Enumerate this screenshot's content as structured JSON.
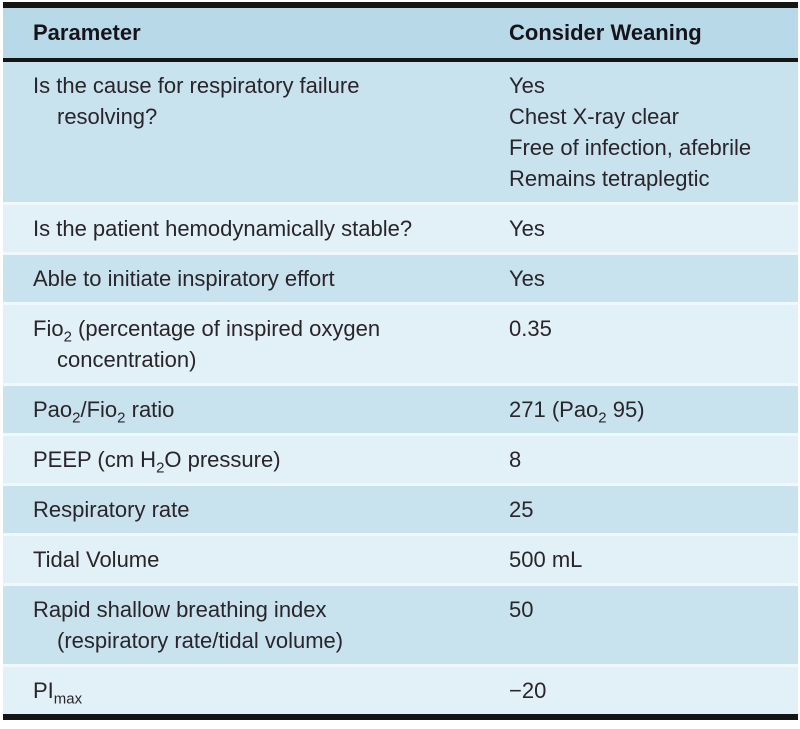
{
  "table": {
    "header": {
      "col1": "Parameter",
      "col2": "Consider Weaning"
    },
    "colors": {
      "header_bg": "#b7d9e8",
      "row_dark": "#c8e2ee",
      "row_light": "#e2f0f7",
      "separator": "#eff8fc",
      "border_black": "#151515",
      "text": "#29252a",
      "page_bg": "#ffffff"
    },
    "rows": [
      {
        "shade": "dark",
        "param_lines": [
          "Is the cause for respiratory failure",
          "resolving?"
        ],
        "values": [
          "Yes",
          "Chest X-ray clear",
          "Free of infection, afebrile",
          "Remains tetraplegtic"
        ]
      },
      {
        "shade": "light",
        "param_lines": [
          "Is the patient hemodynamically stable?"
        ],
        "values": [
          "Yes"
        ]
      },
      {
        "shade": "dark",
        "param_lines": [
          "Able to initiate inspiratory effort"
        ],
        "values": [
          "Yes"
        ]
      },
      {
        "shade": "light",
        "param_lines": [
          "Fio<sub>2</sub> (percentage of inspired oxygen",
          "concentration)"
        ],
        "values": [
          "0.35"
        ]
      },
      {
        "shade": "dark",
        "param_lines": [
          "Pao<sub>2</sub>/Fio<sub>2</sub> ratio"
        ],
        "values": [
          "271 (Pao<sub>2</sub> 95)"
        ]
      },
      {
        "shade": "light",
        "param_lines": [
          "PEEP (cm H<sub>2</sub>O pressure)"
        ],
        "values": [
          "8"
        ]
      },
      {
        "shade": "dark",
        "param_lines": [
          "Respiratory rate"
        ],
        "values": [
          "25"
        ]
      },
      {
        "shade": "light",
        "param_lines": [
          "Tidal Volume"
        ],
        "values": [
          "500 mL"
        ]
      },
      {
        "shade": "dark",
        "param_lines": [
          "Rapid shallow breathing index",
          "(respiratory rate/tidal volume)"
        ],
        "values": [
          "50"
        ]
      },
      {
        "shade": "light",
        "param_lines": [
          "PI<sub>max</sub>"
        ],
        "values": [
          "−20"
        ]
      }
    ]
  }
}
